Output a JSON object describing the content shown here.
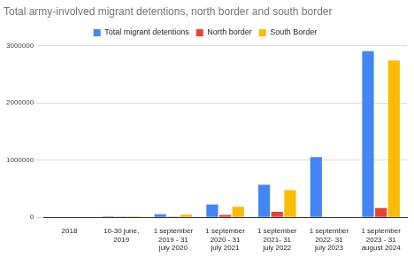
{
  "chart_data": {
    "type": "bar",
    "title": "Total army-involved migrant detentions, north border and south border",
    "categories": [
      "2018",
      "10-30 june, 2019",
      "1 september 2019 - 31 july 2020",
      "1 september 2020 - 31 july 2021",
      "1 september 2021- 31 july 2022",
      "1 september 2022- 31 july 2023",
      "1 september 2023 - 31 august 2024"
    ],
    "series": [
      {
        "name": "Total migrant detentions",
        "color": "#4285f4",
        "values": [
          null,
          15000,
          55000,
          225000,
          570000,
          1050000,
          2900000
        ]
      },
      {
        "name": "North border",
        "color": "#ea4335",
        "values": [
          null,
          2000,
          5000,
          40000,
          95000,
          null,
          160000
        ]
      },
      {
        "name": "South Border",
        "color": "#fbbc04",
        "values": [
          null,
          13000,
          45000,
          185000,
          475000,
          null,
          2740000
        ]
      }
    ],
    "ylim": [
      0,
      3000000
    ],
    "yticks": [
      0,
      1000000,
      2000000,
      3000000
    ],
    "grid": true,
    "legend": "top"
  }
}
